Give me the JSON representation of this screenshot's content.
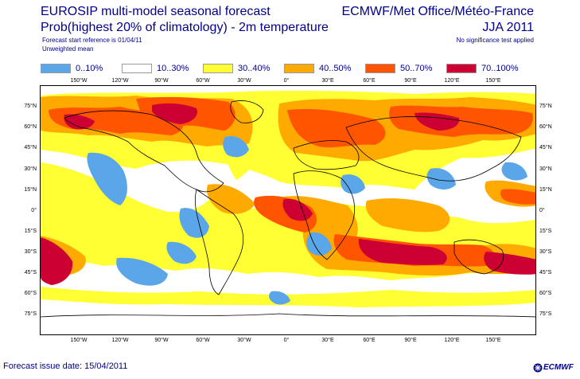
{
  "header": {
    "title_line1_bold": "EUROSIP",
    "title_line1_rest": " multi-model seasonal forecast",
    "title_line2": "Prob(highest 20% of climatology) - 2m temperature",
    "start_reference": "Forecast start reference is 01/04/11",
    "weighting": "Unweighted mean",
    "centres": "ECMWF/Met Office/Météo-France",
    "season": "JJA 2011",
    "significance": "No significance test applied"
  },
  "legend": [
    {
      "label": "0..10%",
      "color": "#5aa6e8"
    },
    {
      "label": "10..30%",
      "color": "#ffffff"
    },
    {
      "label": "30..40%",
      "color": "#ffff33"
    },
    {
      "label": "40..50%",
      "color": "#ffaa00"
    },
    {
      "label": "50..70%",
      "color": "#ff5500"
    },
    {
      "label": "70..100%",
      "color": "#cc0033"
    }
  ],
  "lon_ticks": [
    "150°W",
    "120°W",
    "90°W",
    "60°W",
    "30°W",
    "0°",
    "30°E",
    "60°E",
    "90°E",
    "120°E",
    "150°E"
  ],
  "lat_ticks": [
    "75°N",
    "60°N",
    "45°N",
    "30°N",
    "15°N",
    "0°",
    "15°S",
    "30°S",
    "45°S",
    "60°S",
    "75°S"
  ],
  "footer": {
    "issue_date": "Forecast issue date: 15/04/2011",
    "logo_text": "ECMWF",
    "logo_icon": "ecmwf-logo-icon"
  }
}
